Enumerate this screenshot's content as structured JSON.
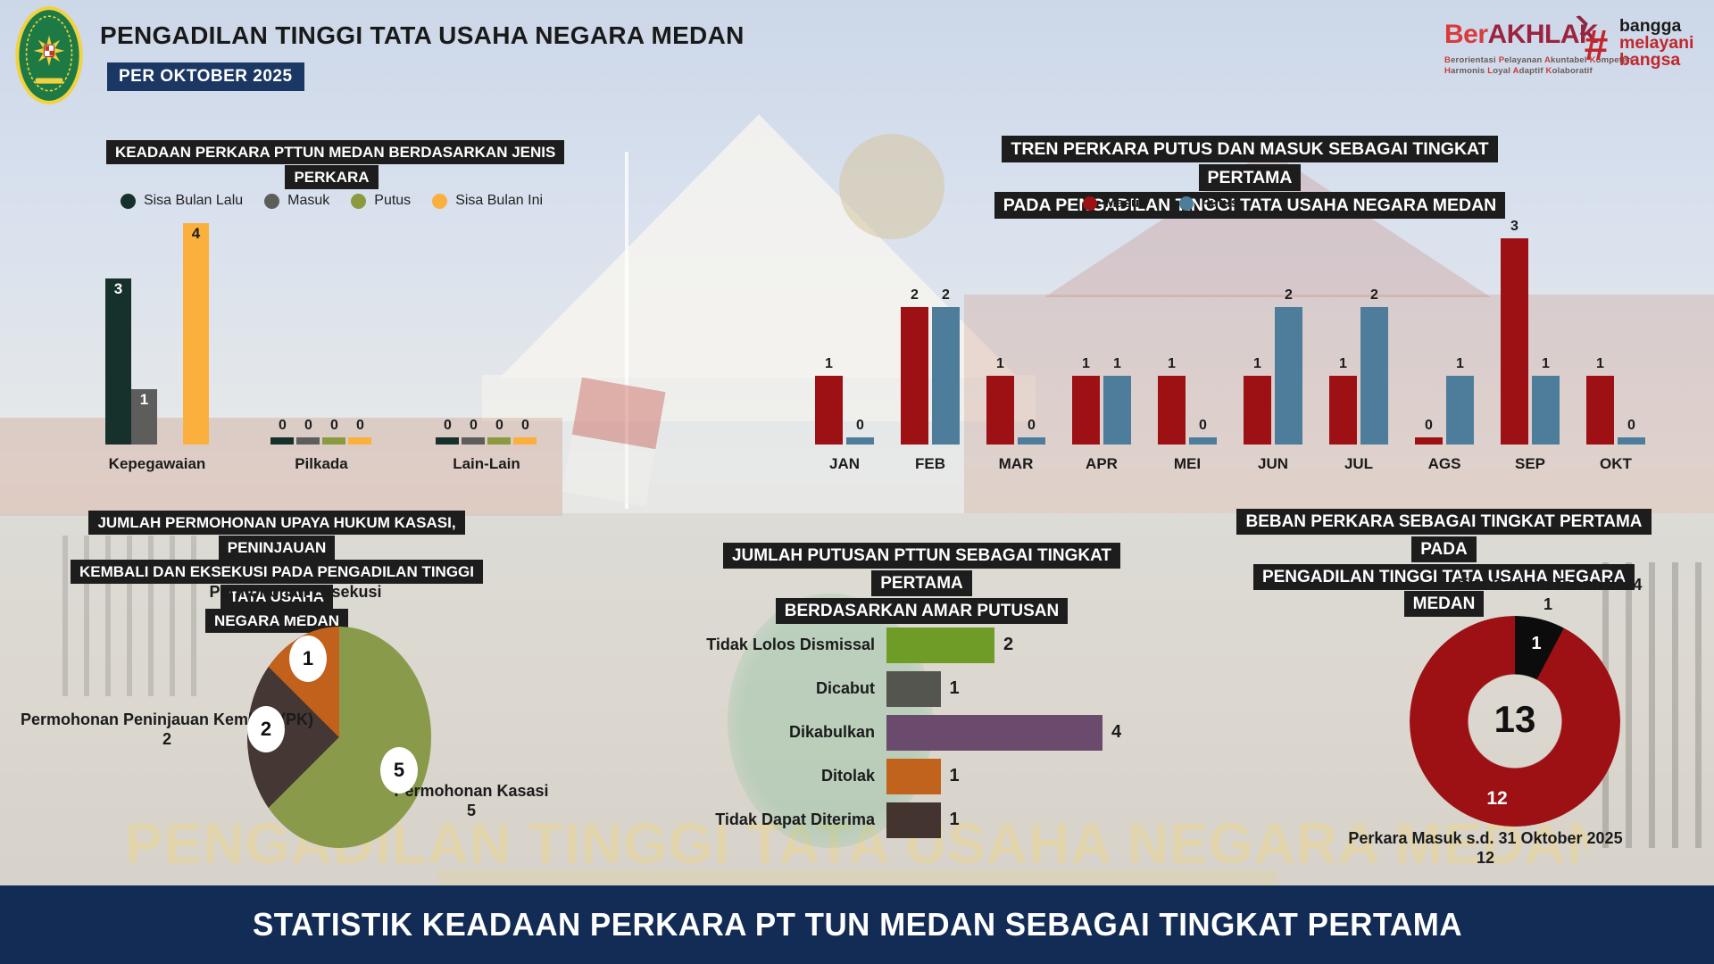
{
  "header": {
    "title": "PENGADILAN TINGGI TATA USAHA NEGARA MEDAN",
    "period_badge": "PER OKTOBER 2025",
    "berakhlak": {
      "brand_prefix": "Ber",
      "brand_suffix": "AKHLAK",
      "arrow": "❯",
      "tagline1": "Berorientasi Pelayanan Akuntabel Kompeten",
      "tagline2": "Harmonis Loyal Adaptif Kolaboratif",
      "hashtag": "#",
      "campaign1": "bangga",
      "campaign2": "melayani",
      "campaign3": "bangsa"
    }
  },
  "watermark": {
    "text": "PENGADILAN TINGGI TATA USAHA NEGARA MEDAN"
  },
  "footer": {
    "text": "STATISTIK KEADAAN PERKARA PT TUN MEDAN SEBAGAI TINGKAT PERTAMA"
  },
  "chart_data": [
    {
      "id": "keadaan_perkara_jenis",
      "type": "bar",
      "title": "KEADAAN PERKARA PTTUN MEDAN BERDASARKAN JENIS PERKARA",
      "categories": [
        "Kepegawaian",
        "Pilkada",
        "Lain-Lain"
      ],
      "series": [
        {
          "name": "Sisa Bulan Lalu",
          "color": "#16302b",
          "values": [
            3,
            0,
            0
          ]
        },
        {
          "name": "Masuk",
          "color": "#5d5d5b",
          "values": [
            1,
            0,
            0
          ]
        },
        {
          "name": "Putus",
          "color": "#8a9a3e",
          "values": [
            0,
            0,
            0
          ]
        },
        {
          "name": "Sisa Bulan Ini",
          "color": "#fbb03e",
          "values": [
            4,
            0,
            0
          ]
        }
      ],
      "ylim": [
        0,
        4
      ],
      "legend_position": "top"
    },
    {
      "id": "tren_putus_masuk",
      "type": "bar",
      "title": "TREN PERKARA PUTUS DAN MASUK SEBAGAI TINGKAT PERTAMA\nPADA PENGADILAN TINGGI TATA USAHA NEGARA MEDAN",
      "categories": [
        "JAN",
        "FEB",
        "MAR",
        "APR",
        "MEI",
        "JUN",
        "JUL",
        "AGS",
        "SEP",
        "OKT"
      ],
      "series": [
        {
          "name": "Masuk",
          "color": "#9d1115",
          "values": [
            1,
            2,
            1,
            1,
            1,
            1,
            1,
            0,
            3,
            1
          ]
        },
        {
          "name": "Putus",
          "color": "#4e7d9b",
          "values": [
            0,
            2,
            0,
            1,
            0,
            2,
            2,
            1,
            1,
            0
          ]
        }
      ],
      "ylim": [
        0,
        3
      ],
      "legend_position": "top"
    },
    {
      "id": "upaya_hukum",
      "type": "pie",
      "title": "JUMLAH PERMOHONAN UPAYA HUKUM KASASI, PENINJAUAN\nKEMBALI DAN EKSEKUSI PADA PENGADILAN TINGGI TATA USAHA\nNEGARA MEDAN",
      "start_angle": "top",
      "direction": "clockwise",
      "slices": [
        {
          "label": "Permohonan Kasasi",
          "value": 5,
          "color": "#8a9a4b"
        },
        {
          "label": "Permohonan Peninjauan Kembali (PK)",
          "value": 2,
          "color": "#453733"
        },
        {
          "label": "Permohonan Eksekusi",
          "value": 1,
          "color": "#c2611c"
        }
      ]
    },
    {
      "id": "amar_putusan",
      "type": "bar",
      "orientation": "horizontal",
      "title": "JUMLAH PUTUSAN PTTUN SEBAGAI TINGKAT PERTAMA\nBERDASARKAN AMAR PUTUSAN",
      "categories": [
        "Tidak Lolos Dismissal",
        "Dicabut",
        "Dikabulkan",
        "Ditolak",
        "Tidak Dapat Diterima"
      ],
      "values": [
        2,
        1,
        4,
        1,
        1
      ],
      "colors": [
        "#6f9c27",
        "#555550",
        "#6a4b6e",
        "#c2631d",
        "#443430"
      ],
      "xlim": [
        0,
        4
      ]
    },
    {
      "id": "beban_perkara",
      "type": "pie",
      "subtype": "donut",
      "title": "BEBAN PERKARA SEBAGAI TINGKAT PERTAMA PADA\nPENGADILAN TINGGI TATA USAHA NEGARA MEDAN",
      "center_total": 13,
      "slices": [
        {
          "label": "Sisa Perkara Tahun 2024",
          "value": 1,
          "color": "#0c0c0c"
        },
        {
          "label": "Perkara Masuk s.d. 31 Oktober 2025",
          "value": 12,
          "color": "#9d1115"
        }
      ]
    }
  ]
}
